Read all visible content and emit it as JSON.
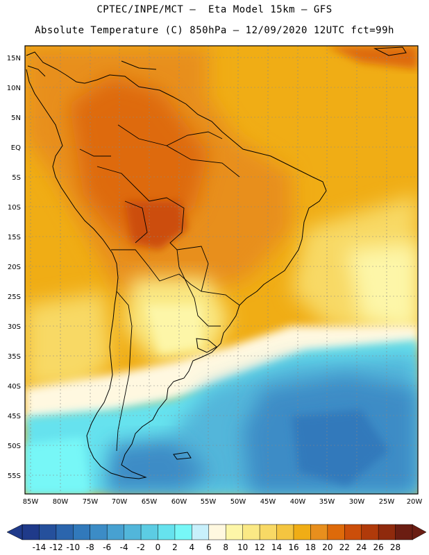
{
  "header": {
    "title_line1": "CPTEC/INPE/MCT –  Eta Model 15km – GFS",
    "title_line2": "Absolute Temperature (C) 850hPa – 12/09/2020 12UTC fct=99h"
  },
  "map": {
    "lat_labels": [
      "15N",
      "10N",
      "5N",
      "EQ",
      "5S",
      "10S",
      "15S",
      "20S",
      "25S",
      "30S",
      "35S",
      "40S",
      "45S",
      "50S",
      "55S"
    ],
    "lon_labels": [
      "85W",
      "80W",
      "75W",
      "70W",
      "65W",
      "60W",
      "55W",
      "50W",
      "45W",
      "40W",
      "35W",
      "30W",
      "25W",
      "20W"
    ]
  },
  "colorbar": {
    "labels": [
      "-14",
      "-12",
      "-10",
      "-8",
      "-6",
      "-4",
      "-2",
      "0",
      "2",
      "4",
      "6",
      "8",
      "10",
      "12",
      "14",
      "16",
      "18",
      "20",
      "22",
      "24",
      "26",
      "28"
    ],
    "colors": [
      "#1f3a8a",
      "#25509c",
      "#2b65ad",
      "#3179bb",
      "#3c8cc6",
      "#47a1d1",
      "#52b6da",
      "#5ccce3",
      "#66e2ee",
      "#77f7f7",
      "#c8f0fb",
      "#fff8e0",
      "#fdf6a8",
      "#fae985",
      "#f8d965",
      "#f4c540",
      "#f0ad15",
      "#e88f1d",
      "#de6a0a",
      "#cc4e0a",
      "#b03a0a",
      "#8f2a0d",
      "#6b1d12"
    ]
  }
}
